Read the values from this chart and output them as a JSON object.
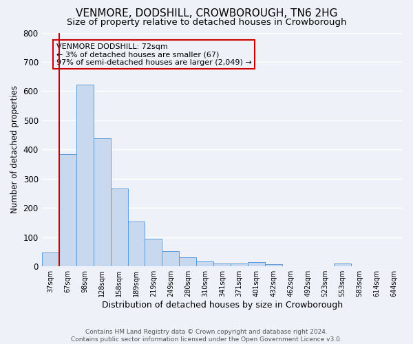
{
  "title": "VENMORE, DODSHILL, CROWBOROUGH, TN6 2HG",
  "subtitle": "Size of property relative to detached houses in Crowborough",
  "xlabel": "Distribution of detached houses by size in Crowborough",
  "ylabel": "Number of detached properties",
  "bar_labels": [
    "37sqm",
    "67sqm",
    "98sqm",
    "128sqm",
    "158sqm",
    "189sqm",
    "219sqm",
    "249sqm",
    "280sqm",
    "310sqm",
    "341sqm",
    "371sqm",
    "401sqm",
    "432sqm",
    "462sqm",
    "492sqm",
    "523sqm",
    "553sqm",
    "583sqm",
    "614sqm",
    "644sqm"
  ],
  "bar_values": [
    47,
    385,
    622,
    438,
    267,
    153,
    95,
    52,
    30,
    18,
    11,
    11,
    14,
    7,
    0,
    0,
    0,
    10,
    0,
    0,
    0
  ],
  "bar_color": "#c8d8ee",
  "bar_edge_color": "#5b9bd5",
  "ylim": [
    0,
    800
  ],
  "yticks": [
    0,
    100,
    200,
    300,
    400,
    500,
    600,
    700,
    800
  ],
  "vline_color": "#cc0000",
  "annotation_title": "VENMORE DODSHILL: 72sqm",
  "annotation_line1": "← 3% of detached houses are smaller (67)",
  "annotation_line2": "97% of semi-detached houses are larger (2,049) →",
  "annotation_box_edge": "#cc0000",
  "footer_line1": "Contains HM Land Registry data © Crown copyright and database right 2024.",
  "footer_line2": "Contains public sector information licensed under the Open Government Licence v3.0.",
  "bg_color": "#eef2f8",
  "grid_color": "#ffffff",
  "title_fontsize": 11,
  "subtitle_fontsize": 9.5
}
